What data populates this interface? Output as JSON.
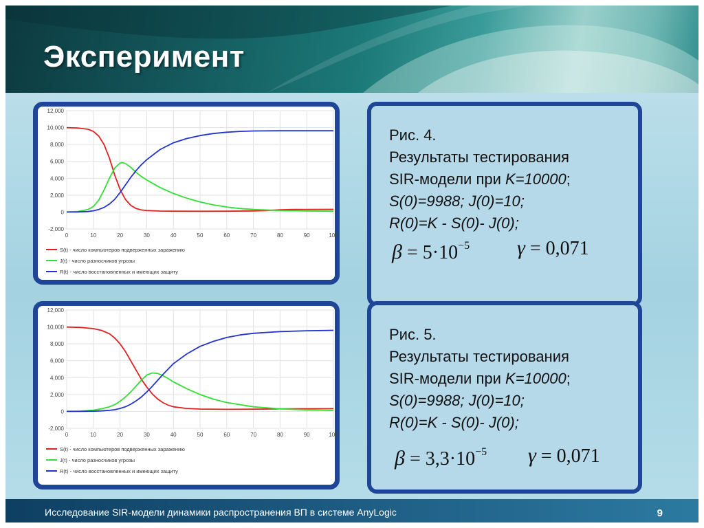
{
  "slide": {
    "title": "Эксперимент",
    "footer": "Исследование SIR-модели динамики распространения ВП в системе AnyLogic",
    "page_number": "9"
  },
  "captions": [
    {
      "fig": "Рис. 4.",
      "line1": "Результаты тестирования",
      "line2_prefix": "SIR-модели при ",
      "line2_italic": "K=10000",
      "line2_suffix": ";",
      "line3": "S(0)=9988;  J(0)=10;",
      "line4": "R(0)=K - S(0)- J(0);",
      "beta_label": "β",
      "beta_value": "= 5·10",
      "beta_exp": "−5",
      "gamma_label": "γ",
      "gamma_value": "= 0,071"
    },
    {
      "fig": "Рис. 5.",
      "line1": "Результаты тестирования",
      "line2_prefix": "SIR-модели при ",
      "line2_italic": "K=10000",
      "line2_suffix": ";",
      "line3": "S(0)=9988;  J(0)=10;",
      "line4": "R(0)=K - S(0)- J(0);",
      "beta_label": "β",
      "beta_value": "= 3,3·10",
      "beta_exp": "−5",
      "gamma_label": "γ",
      "gamma_value": "= 0,071"
    }
  ],
  "chart_data": [
    {
      "type": "line",
      "xlim": [
        0,
        100
      ],
      "ylim": [
        -2000,
        12000
      ],
      "x_ticks": [
        0,
        10,
        20,
        30,
        40,
        50,
        60,
        70,
        80,
        90,
        100
      ],
      "y_ticks": [
        -2000,
        0,
        2000,
        4000,
        6000,
        8000,
        10000,
        12000
      ],
      "x_tick_labels": [
        "0",
        "10",
        "20",
        "30",
        "40",
        "50",
        "60",
        "70",
        "80",
        "90",
        "100"
      ],
      "y_tick_labels": [
        "-2,000",
        "0",
        "2,000",
        "4,000",
        "6,000",
        "8,000",
        "10,000",
        "12,000"
      ],
      "grid": true,
      "legend_position": "bottom",
      "series": [
        {
          "name": "S(t) - число компьютеров подверженных заражению",
          "color": "#e02020",
          "x": [
            0,
            4,
            8,
            10,
            12,
            14,
            16,
            18,
            20,
            22,
            24,
            26,
            28,
            30,
            35,
            40,
            50,
            60,
            70,
            75,
            80,
            85,
            90,
            100
          ],
          "y": [
            9988,
            9960,
            9800,
            9550,
            9000,
            8000,
            6400,
            4400,
            2700,
            1500,
            800,
            420,
            250,
            180,
            120,
            100,
            90,
            100,
            130,
            180,
            260,
            300,
            310,
            320
          ]
        },
        {
          "name": "J(t) - число разносчиков угрозы",
          "color": "#33dd33",
          "x": [
            0,
            4,
            8,
            10,
            12,
            14,
            16,
            18,
            20,
            21,
            22,
            24,
            26,
            28,
            30,
            35,
            40,
            45,
            50,
            55,
            60,
            65,
            70,
            80,
            90,
            100
          ],
          "y": [
            10,
            60,
            300,
            650,
            1400,
            2600,
            4000,
            5200,
            5800,
            5850,
            5750,
            5300,
            4700,
            4200,
            3800,
            2900,
            2200,
            1650,
            1200,
            850,
            600,
            420,
            300,
            180,
            130,
            100
          ]
        },
        {
          "name": "R(t) - число восстановленных и имеющих защиту",
          "color": "#2233cc",
          "x": [
            0,
            4,
            8,
            10,
            12,
            14,
            16,
            18,
            20,
            22,
            24,
            26,
            28,
            30,
            35,
            40,
            45,
            50,
            55,
            60,
            65,
            70,
            80,
            90,
            100
          ],
          "y": [
            0,
            10,
            60,
            150,
            300,
            550,
            950,
            1500,
            2300,
            3200,
            4100,
            4900,
            5600,
            6200,
            7400,
            8200,
            8700,
            9050,
            9300,
            9450,
            9550,
            9600,
            9620,
            9620,
            9620
          ]
        }
      ]
    },
    {
      "type": "line",
      "xlim": [
        0,
        100
      ],
      "ylim": [
        -2000,
        12000
      ],
      "x_ticks": [
        0,
        10,
        20,
        30,
        40,
        50,
        60,
        70,
        80,
        90,
        100
      ],
      "y_ticks": [
        -2000,
        0,
        2000,
        4000,
        6000,
        8000,
        10000,
        12000
      ],
      "x_tick_labels": [
        "0",
        "10",
        "20",
        "30",
        "40",
        "50",
        "60",
        "70",
        "80",
        "90",
        "100"
      ],
      "y_tick_labels": [
        "-2,000",
        "0",
        "2,000",
        "4,000",
        "6,000",
        "8,000",
        "10,000",
        "12,000"
      ],
      "grid": true,
      "legend_position": "bottom",
      "series": [
        {
          "name": "S(t) - число компьютеров подверженных заражению",
          "color": "#e02020",
          "x": [
            0,
            5,
            10,
            13,
            16,
            18,
            20,
            22,
            24,
            26,
            28,
            30,
            32,
            34,
            36,
            38,
            40,
            45,
            50,
            60,
            70,
            80,
            90,
            100
          ],
          "y": [
            9988,
            9950,
            9800,
            9600,
            9200,
            8700,
            8000,
            7100,
            6000,
            4900,
            3800,
            2900,
            2100,
            1500,
            1050,
            750,
            550,
            350,
            280,
            250,
            260,
            300,
            320,
            330
          ]
        },
        {
          "name": "J(t) - число разносчиков угрозы",
          "color": "#33dd33",
          "x": [
            0,
            5,
            10,
            13,
            16,
            18,
            20,
            22,
            24,
            26,
            28,
            30,
            32,
            34,
            36,
            38,
            40,
            45,
            50,
            55,
            60,
            70,
            80,
            90,
            100
          ],
          "y": [
            10,
            30,
            150,
            300,
            550,
            800,
            1200,
            1700,
            2300,
            3000,
            3700,
            4300,
            4550,
            4500,
            4250,
            3900,
            3500,
            2700,
            2000,
            1450,
            1050,
            550,
            300,
            180,
            120
          ]
        },
        {
          "name": "R(t) - число восстановленных и имеющих защиту",
          "color": "#2233cc",
          "x": [
            0,
            5,
            10,
            13,
            16,
            18,
            20,
            22,
            24,
            26,
            28,
            30,
            32,
            34,
            36,
            38,
            40,
            45,
            50,
            55,
            60,
            65,
            70,
            80,
            90,
            100
          ],
          "y": [
            0,
            10,
            30,
            60,
            130,
            200,
            350,
            550,
            850,
            1250,
            1700,
            2300,
            2950,
            3650,
            4350,
            5000,
            5650,
            6800,
            7700,
            8300,
            8750,
            9050,
            9250,
            9450,
            9550,
            9600
          ]
        }
      ]
    }
  ]
}
